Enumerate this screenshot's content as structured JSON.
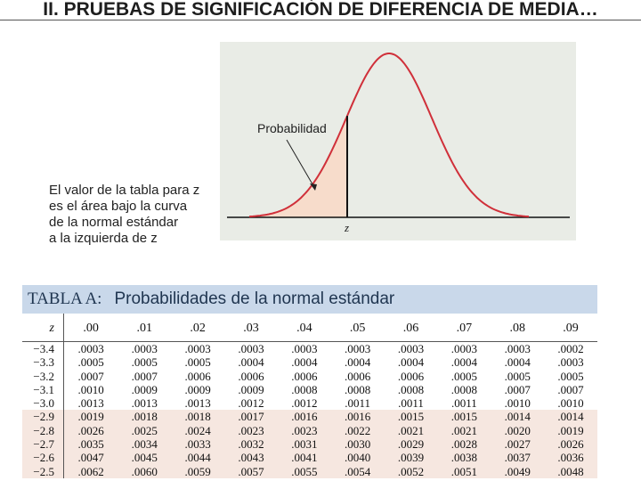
{
  "header": {
    "title": "II. PRUEBAS DE SIGNIFICACIÓN DE DIFERENCIA DE MEDIA…"
  },
  "figure": {
    "callout": "Probabilidad",
    "axis_label": "z",
    "caption": [
      "El valor de la tabla para z",
      "es el área bajo la curva",
      "de la normal estándar",
      "a la izquierda de z"
    ]
  },
  "table": {
    "label": "TABLA A:",
    "title": "Probabilidades de la normal estándar",
    "columns": [
      "z",
      ".00",
      ".01",
      ".02",
      ".03",
      ".04",
      ".05",
      ".06",
      ".07",
      ".08",
      ".09"
    ],
    "rows": [
      [
        "−3.4",
        ".0003",
        ".0003",
        ".0003",
        ".0003",
        ".0003",
        ".0003",
        ".0003",
        ".0003",
        ".0003",
        ".0002"
      ],
      [
        "−3.3",
        ".0005",
        ".0005",
        ".0005",
        ".0004",
        ".0004",
        ".0004",
        ".0004",
        ".0004",
        ".0004",
        ".0003"
      ],
      [
        "−3.2",
        ".0007",
        ".0007",
        ".0006",
        ".0006",
        ".0006",
        ".0006",
        ".0006",
        ".0005",
        ".0005",
        ".0005"
      ],
      [
        "−3.1",
        ".0010",
        ".0009",
        ".0009",
        ".0009",
        ".0008",
        ".0008",
        ".0008",
        ".0008",
        ".0007",
        ".0007"
      ],
      [
        "−3.0",
        ".0013",
        ".0013",
        ".0013",
        ".0012",
        ".0012",
        ".0011",
        ".0011",
        ".0011",
        ".0010",
        ".0010"
      ],
      [
        "−2.9",
        ".0019",
        ".0018",
        ".0018",
        ".0017",
        ".0016",
        ".0016",
        ".0015",
        ".0015",
        ".0014",
        ".0014"
      ],
      [
        "−2.8",
        ".0026",
        ".0025",
        ".0024",
        ".0023",
        ".0023",
        ".0022",
        ".0021",
        ".0021",
        ".0020",
        ".0019"
      ],
      [
        "−2.7",
        ".0035",
        ".0034",
        ".0033",
        ".0032",
        ".0031",
        ".0030",
        ".0029",
        ".0028",
        ".0027",
        ".0026"
      ],
      [
        "−2.6",
        ".0047",
        ".0045",
        ".0044",
        ".0043",
        ".0041",
        ".0040",
        ".0039",
        ".0038",
        ".0037",
        ".0036"
      ],
      [
        "−2.5",
        ".0062",
        ".0060",
        ".0059",
        ".0057",
        ".0055",
        ".0054",
        ".0052",
        ".0051",
        ".0049",
        ".0048"
      ]
    ]
  }
}
